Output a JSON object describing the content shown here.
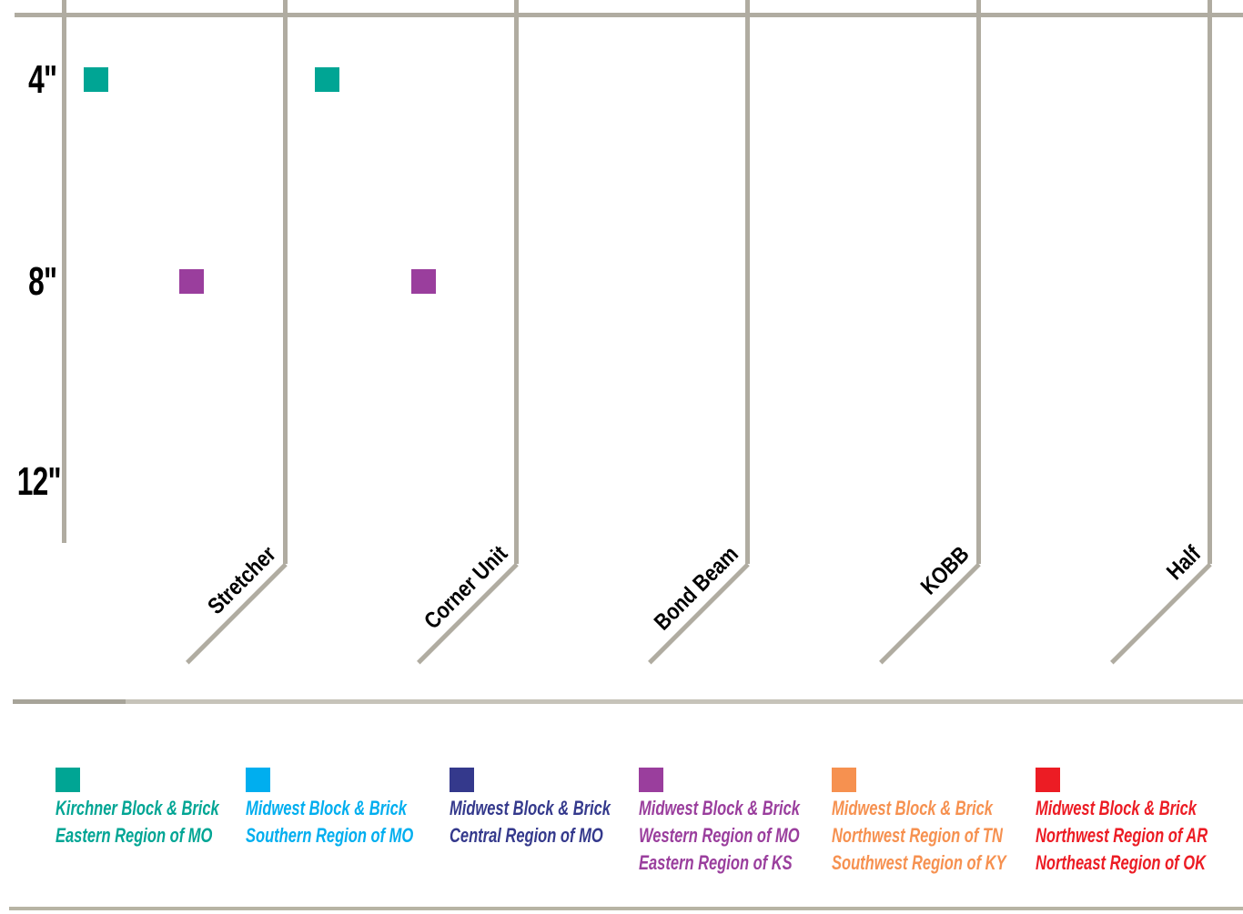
{
  "chart_data": {
    "type": "scatter",
    "title": "",
    "x_categories": [
      "Stretcher",
      "Corner Unit",
      "Bond Beam",
      "KOBB",
      "Half"
    ],
    "y_categories": [
      "4\"",
      "8\"",
      "12\""
    ],
    "grid": "on",
    "legend_position": "bottom",
    "points": [
      {
        "block": "Stretcher",
        "size": "4\"",
        "supplier": "Kirchner Block & Brick - Eastern Region of MO",
        "color": "#00a594"
      },
      {
        "block": "Stretcher",
        "size": "8\"",
        "supplier": "Midwest Block & Brick - Western Region of MO / Eastern Region of KS",
        "color": "#9a3e9d"
      },
      {
        "block": "Corner Unit",
        "size": "4\"",
        "supplier": "Kirchner Block & Brick - Eastern Region of MO",
        "color": "#00a594"
      },
      {
        "block": "Corner Unit",
        "size": "8\"",
        "supplier": "Midwest Block & Brick - Western Region of MO / Eastern Region of KS",
        "color": "#9a3e9d"
      }
    ],
    "legend": [
      {
        "color": "#00a594",
        "lines": [
          "Kirchner Block & Brick",
          "Eastern Region of MO"
        ]
      },
      {
        "color": "#00aeef",
        "lines": [
          "Midwest Block & Brick",
          "Southern Region of MO"
        ]
      },
      {
        "color": "#34398c",
        "lines": [
          "Midwest Block & Brick",
          "Central Region of MO"
        ]
      },
      {
        "color": "#9a3e9d",
        "lines": [
          "Midwest Block & Brick",
          "Western Region of MO",
          "Eastern Region of KS"
        ]
      },
      {
        "color": "#f69150",
        "lines": [
          "Midwest Block & Brick",
          "Northwest Region of TN",
          "Southwest Region of KY"
        ]
      },
      {
        "color": "#ec1c24",
        "lines": [
          "Midwest Block & Brick",
          "Northwest Region of AR",
          "Northeast Region of OK"
        ]
      }
    ],
    "colors": {
      "grid": "#b0aca1"
    }
  }
}
